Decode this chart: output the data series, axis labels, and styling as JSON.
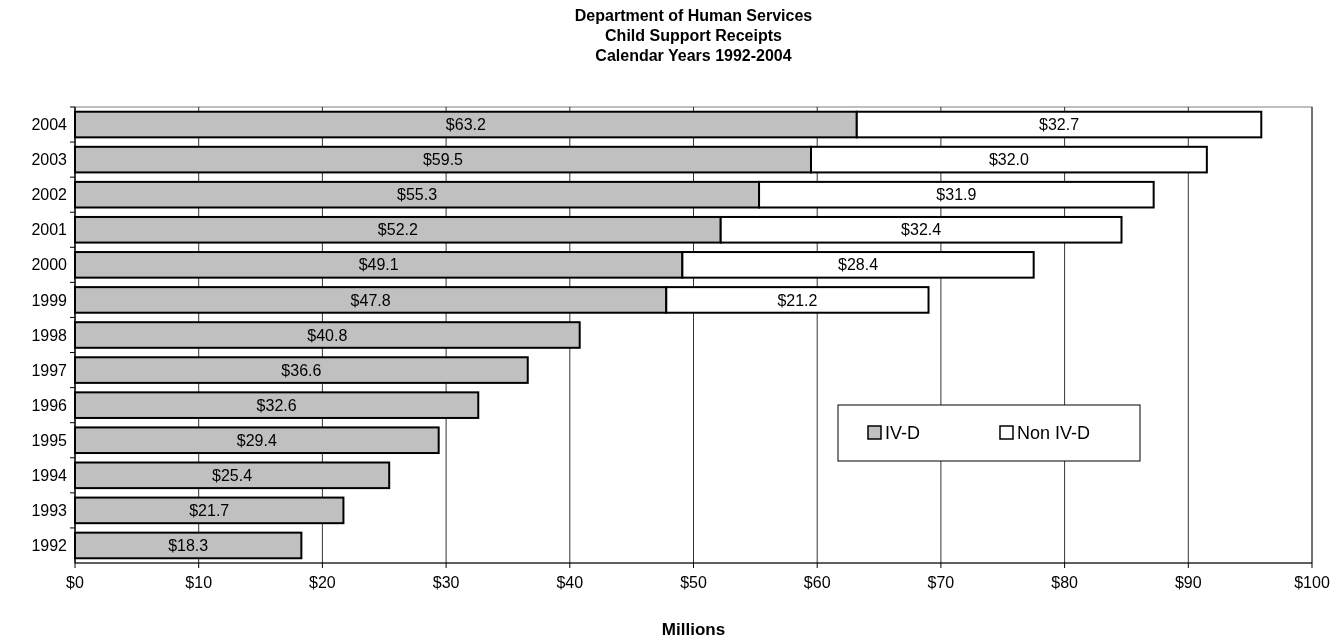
{
  "chart_data": {
    "type": "bar",
    "orientation": "horizontal",
    "stacked": true,
    "title": "Department of Human Services\nChild Support Receipts\nCalendar Years 1992-2004",
    "xlabel": "Millions",
    "categories": [
      "2004",
      "2003",
      "2002",
      "2001",
      "2000",
      "1999",
      "1998",
      "1997",
      "1996",
      "1995",
      "1994",
      "1993",
      "1992"
    ],
    "series": [
      {
        "name": "IV-D",
        "color": "#c0c0c0",
        "values": [
          63.2,
          59.5,
          55.3,
          52.2,
          49.1,
          47.8,
          40.8,
          36.6,
          32.6,
          29.4,
          25.4,
          21.7,
          18.3
        ],
        "value_labels": [
          "$63.2",
          "$59.5",
          "$55.3",
          "$52.2",
          "$49.1",
          "$47.8",
          "$40.8",
          "$36.6",
          "$32.6",
          "$29.4",
          "$25.4",
          "$21.7",
          "$18.3"
        ]
      },
      {
        "name": "Non IV-D",
        "color": "#ffffff",
        "values": [
          32.7,
          32.0,
          31.9,
          32.4,
          28.4,
          21.2,
          null,
          null,
          null,
          null,
          null,
          null,
          null
        ],
        "value_labels": [
          "$32.7",
          "$32.0",
          "$31.9",
          "$32.4",
          "$28.4",
          "$21.2",
          null,
          null,
          null,
          null,
          null,
          null,
          null
        ]
      }
    ],
    "xlim": [
      0,
      100
    ],
    "xticks": [
      {
        "value": 0,
        "label": "$0"
      },
      {
        "value": 10,
        "label": "$10"
      },
      {
        "value": 20,
        "label": "$20"
      },
      {
        "value": 30,
        "label": "$30"
      },
      {
        "value": 40,
        "label": "$40"
      },
      {
        "value": 50,
        "label": "$50"
      },
      {
        "value": 60,
        "label": "$60"
      },
      {
        "value": 70,
        "label": "$70"
      },
      {
        "value": 80,
        "label": "$80"
      },
      {
        "value": 90,
        "label": "$90"
      },
      {
        "value": 100,
        "label": "$100"
      }
    ],
    "grid": "x",
    "legend": "bottom right"
  }
}
